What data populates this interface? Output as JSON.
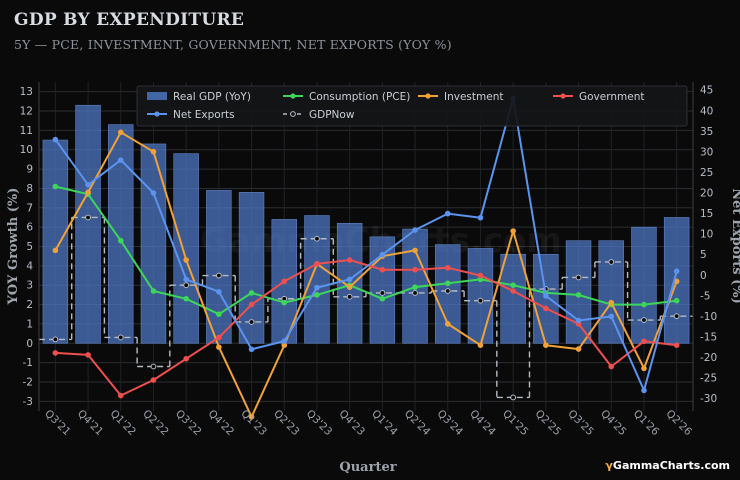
{
  "header": {
    "title": "GDP BY EXPENDITURE",
    "subtitle": "5Y — PCE, INVESTMENT, GOVERNMENT, NET EXPORTS (YOY %)"
  },
  "brand": {
    "mark": "γ",
    "name": "GammaCharts.com"
  },
  "chart_data": {
    "type": "bar",
    "xlabel": "Quarter",
    "ylabel": "YOY Growth (%)",
    "y2label": "Net Exports (%)",
    "categories": [
      "Q3'21",
      "Q4'21",
      "Q1'22",
      "Q2'22",
      "Q3'22",
      "Q4'22",
      "Q1'23",
      "Q2'23",
      "Q3'23",
      "Q4'23",
      "Q1'24",
      "Q2'24",
      "Q3'24",
      "Q4'24",
      "Q1'25",
      "Q2'25",
      "Q3'25",
      "Q4'25",
      "Q1'26",
      "Q2'26"
    ],
    "ylim": [
      -3.5,
      13.5
    ],
    "y_ticks": [
      -3,
      -2,
      -1,
      0,
      1,
      2,
      3,
      4,
      5,
      6,
      7,
      8,
      9,
      10,
      11,
      12,
      13
    ],
    "y2lim": [
      -33,
      47
    ],
    "y2_ticks": [
      -30,
      -25,
      -20,
      -15,
      -10,
      -5,
      0,
      5,
      10,
      15,
      20,
      25,
      30,
      35,
      40,
      45
    ],
    "grid": true,
    "legend_position": "top",
    "series": [
      {
        "name": "Real GDP (YoY)",
        "kind": "bar",
        "axis": "left",
        "color": "#4f79c7",
        "values": [
          10.5,
          12.3,
          11.3,
          10.3,
          9.8,
          7.9,
          7.8,
          6.4,
          6.6,
          6.2,
          5.5,
          5.9,
          5.1,
          4.9,
          4.6,
          4.6,
          5.3,
          5.3,
          6.0,
          6.5
        ]
      },
      {
        "name": "Consumption (PCE)",
        "kind": "line",
        "axis": "left",
        "color": "#3dd65a",
        "values": [
          8.1,
          7.7,
          5.3,
          2.7,
          2.3,
          1.5,
          2.6,
          2.1,
          2.5,
          3.0,
          2.3,
          2.9,
          3.1,
          3.3,
          3.0,
          2.6,
          2.5,
          2.0,
          2.0,
          2.2
        ]
      },
      {
        "name": "Investment",
        "kind": "line",
        "axis": "left",
        "color": "#f0a238",
        "values": [
          4.8,
          7.8,
          10.9,
          9.9,
          4.3,
          -0.2,
          -3.8,
          -0.1,
          4.1,
          2.9,
          4.5,
          4.8,
          1.0,
          -0.1,
          5.8,
          -0.1,
          -0.3,
          2.1,
          -1.3,
          3.2
        ]
      },
      {
        "name": "Government",
        "kind": "line",
        "axis": "left",
        "color": "#ee4f4f",
        "values": [
          -0.5,
          -0.6,
          -2.7,
          -1.9,
          -0.8,
          0.3,
          2.0,
          3.2,
          4.1,
          4.3,
          3.8,
          3.8,
          3.9,
          3.5,
          2.7,
          1.8,
          1.0,
          -1.2,
          0.1,
          -0.1
        ]
      },
      {
        "name": "Net Exports",
        "kind": "line",
        "axis": "right",
        "color": "#5b93ee",
        "values": [
          33,
          22,
          28,
          20,
          -1,
          -4,
          -18,
          -16,
          -3,
          -1,
          5,
          11,
          15,
          14,
          43,
          -5,
          -11,
          -10,
          -28,
          1
        ]
      },
      {
        "name": "GDPNow",
        "kind": "step",
        "axis": "left",
        "color": "#b4bac3",
        "values": [
          0.2,
          6.5,
          0.3,
          -1.2,
          3.0,
          3.5,
          1.1,
          2.3,
          5.4,
          2.4,
          2.6,
          2.6,
          2.7,
          2.2,
          -2.8,
          2.8,
          3.4,
          4.2,
          1.2,
          1.4
        ]
      }
    ]
  }
}
